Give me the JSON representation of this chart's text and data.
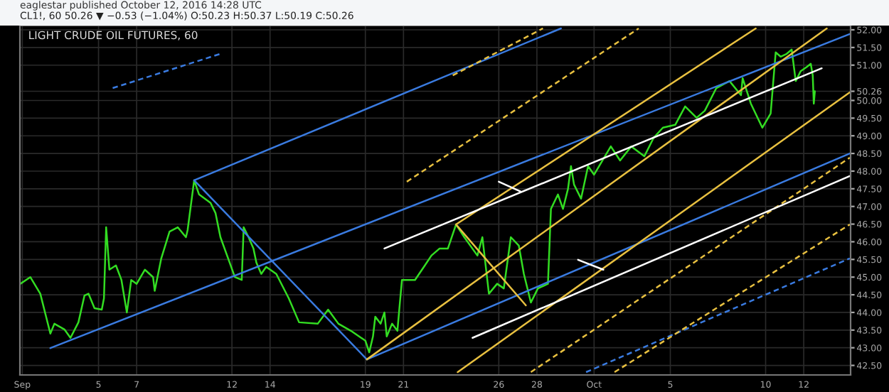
{
  "chart_data": {
    "type": "line",
    "title": "LIGHT CRUDE OIL FUTURES, 60",
    "subtitle": "CL1!, 60 50.26 ▼ −0.53 (−1.04%) O:50.23 H:50.37 L:50.19 C:50.26",
    "annotations": [
      "eaglestar published October 12, 2016 14:28 UTC"
    ],
    "xlim": [
      "2016-08-31T21:00",
      "2016-10-14T11:00"
    ],
    "ylim": [
      42.23,
      52.12
    ],
    "xticks": [
      {
        "value": "2016-09-01",
        "label": "Sep"
      },
      {
        "value": "2016-09-05",
        "label": "5"
      },
      {
        "value": "2016-09-07",
        "label": "7"
      },
      {
        "value": "2016-09-12",
        "label": "12"
      },
      {
        "value": "2016-09-14",
        "label": "14"
      },
      {
        "value": "2016-09-19",
        "label": "19"
      },
      {
        "value": "2016-09-21",
        "label": "21"
      },
      {
        "value": "2016-09-26",
        "label": "26"
      },
      {
        "value": "2016-09-28",
        "label": "28"
      },
      {
        "value": "2016-10-01",
        "label": "Oct"
      },
      {
        "value": "2016-10-05",
        "label": "5"
      },
      {
        "value": "2016-10-10",
        "label": "10"
      },
      {
        "value": "2016-10-12",
        "label": "12"
      }
    ],
    "yticks": [
      {
        "value": 42.5,
        "label": "42.50"
      },
      {
        "value": 43,
        "label": "43.00"
      },
      {
        "value": 43.5,
        "label": "43.50"
      },
      {
        "value": 44,
        "label": "44.00"
      },
      {
        "value": 44.5,
        "label": "44.50"
      },
      {
        "value": 45,
        "label": "45.00"
      },
      {
        "value": 45.5,
        "label": "45.50"
      },
      {
        "value": 46,
        "label": "46.00"
      },
      {
        "value": 46.5,
        "label": "46.50"
      },
      {
        "value": 47,
        "label": "47.00"
      },
      {
        "value": 47.5,
        "label": "47.50"
      },
      {
        "value": 48,
        "label": "48.00"
      },
      {
        "value": 48.5,
        "label": "48.50"
      },
      {
        "value": 49,
        "label": "49.00"
      },
      {
        "value": 49.5,
        "label": "49.50"
      },
      {
        "value": 50,
        "label": "50.00"
      },
      {
        "value": 50.26,
        "label": "50.26"
      },
      {
        "value": 51,
        "label": "51.00"
      },
      {
        "value": 51.5,
        "label": "51.50"
      },
      {
        "value": 52,
        "label": "52.00"
      }
    ],
    "grid": true,
    "legend": false,
    "marker": "none",
    "series": [
      {
        "color": "#33dd22",
        "line_style": "solid",
        "x": [
          "2016-08-31T21:30",
          "2016-09-01T10:05",
          "2016-09-01T22:40",
          "2016-09-02T11:20",
          "2016-09-02T16:25",
          "2016-09-03T05:00",
          "2016-09-03T12:40",
          "2016-09-03T22:40",
          "2016-09-04T06:20",
          "2016-09-04T11:20",
          "2016-09-04T18:55",
          "2016-09-05T04:05",
          "2016-09-05T06:50",
          "2016-09-05T09:35",
          "2016-09-05T13:40",
          "2016-09-05T21:55",
          "2016-09-06T04:50",
          "2016-09-06T11:40",
          "2016-09-06T17:10",
          "2016-09-07T00:00",
          "2016-09-07T10:20",
          "2016-09-07T20:40",
          "2016-09-07T22:45",
          "2016-09-08T07:00",
          "2016-09-08T17:25",
          "2016-09-09T03:45",
          "2016-09-09T14:05",
          "2016-09-09T16:10",
          "2016-09-10T00:25",
          "2016-09-10T06:35",
          "2016-09-10T21:05",
          "2016-09-11T03:20",
          "2016-09-11T09:30",
          "2016-09-11T19:50",
          "2016-09-12T03:40",
          "2016-09-12T12:20",
          "2016-09-12T14:45",
          "2016-09-12T20:55",
          "2016-09-13T03:05",
          "2016-09-13T06:45",
          "2016-09-13T12:55",
          "2016-09-13T19:05",
          "2016-09-14T07:50",
          "2016-09-14T23:30",
          "2016-09-15T12:30",
          "2016-09-16T12:00",
          "2016-09-17T01:05",
          "2016-09-17T14:05",
          "2016-09-18T05:45",
          "2016-09-19T00:00",
          "2016-09-19T04:50",
          "2016-09-19T09:35",
          "2016-09-19T12:30",
          "2016-09-19T19:10",
          "2016-09-20T00:00",
          "2016-09-20T02:55",
          "2016-09-20T09:35",
          "2016-09-20T16:20",
          "2016-09-20T19:10",
          "2016-09-20T22:05",
          "2016-09-21T14:30",
          "2016-09-22T02:55",
          "2016-09-22T11:10",
          "2016-09-22T21:30",
          "2016-09-23T07:55",
          "2016-09-23T18:10",
          "2016-09-24T04:35",
          "2016-09-24T21:05",
          "2016-09-25T03:20",
          "2016-09-25T11:35",
          "2016-09-25T21:55",
          "2016-09-26T06:20",
          "2016-09-26T15:10",
          "2016-09-27T01:15",
          "2016-09-27T07:35",
          "2016-09-27T16:25",
          "2016-09-28T01:15",
          "2016-09-28T13:55",
          "2016-09-28T17:40",
          "2016-09-29T02:30",
          "2016-09-29T08:50",
          "2016-09-29T15:10",
          "2016-09-29T18:55",
          "2016-09-29T22:45",
          "2016-09-30T07:35",
          "2016-09-30T16:25",
          "2016-10-01T00:00",
          "2016-10-01T21:05",
          "2016-10-02T08:45",
          "2016-10-02T22:50",
          "2016-10-03T15:15",
          "2016-10-04T02:55",
          "2016-10-04T14:40",
          "2016-10-05T06:10",
          "2016-10-05T18:40",
          "2016-10-06T09:05",
          "2016-10-06T19:25",
          "2016-10-07T09:55",
          "2016-10-08T02:30",
          "2016-10-08T17:00",
          "2016-10-08T19:05",
          "2016-10-09T05:25",
          "2016-10-09T19:50",
          "2016-10-10T06:20",
          "2016-10-10T12:40",
          "2016-10-10T18:55",
          "2016-10-11T02:30",
          "2016-10-11T08:50",
          "2016-10-11T13:55",
          "2016-10-11T20:10",
          "2016-10-12T03:50",
          "2016-10-12T08:50",
          "2016-10-12T11:20",
          "2016-10-12T12:40",
          "2016-10-12T14:00"
        ],
        "values": [
          44.81,
          45.0,
          44.53,
          43.4,
          43.68,
          43.52,
          43.28,
          43.72,
          44.48,
          44.53,
          44.12,
          44.08,
          44.4,
          46.41,
          45.21,
          45.33,
          44.92,
          44.0,
          44.92,
          44.81,
          45.21,
          45.0,
          44.61,
          45.53,
          46.29,
          46.41,
          46.13,
          46.33,
          47.74,
          47.34,
          47.1,
          46.81,
          46.13,
          45.49,
          45.0,
          44.92,
          46.41,
          46.13,
          45.81,
          45.41,
          45.09,
          45.29,
          45.09,
          44.4,
          43.72,
          43.68,
          44.08,
          43.68,
          43.48,
          43.2,
          42.87,
          43.32,
          43.88,
          43.68,
          44.0,
          43.32,
          43.68,
          43.48,
          44.2,
          44.92,
          44.92,
          45.33,
          45.61,
          45.81,
          45.81,
          46.49,
          46.13,
          45.61,
          46.13,
          44.53,
          44.81,
          44.68,
          46.13,
          45.89,
          45.09,
          44.28,
          44.68,
          44.81,
          46.93,
          47.34,
          46.93,
          47.5,
          48.14,
          47.62,
          47.22,
          48.14,
          47.9,
          48.7,
          48.3,
          48.7,
          48.42,
          48.94,
          49.23,
          49.31,
          49.83,
          49.51,
          49.71,
          50.35,
          50.55,
          50.15,
          50.63,
          49.91,
          49.23,
          49.63,
          51.36,
          51.24,
          51.32,
          51.44,
          50.55,
          50.83,
          50.95,
          51.04,
          50.71,
          49.91,
          50.26
        ]
      },
      {
        "color": "#3a7be0",
        "line_style": "solid",
        "x": [
          "2016-09-02T11:20",
          "2016-10-14T10:00"
        ],
        "values": [
          42.99,
          51.88
        ]
      },
      {
        "color": "#3a7be0",
        "line_style": "solid",
        "x": [
          "2016-09-10T00:25",
          "2016-09-29T06:20"
        ],
        "values": [
          47.74,
          52.04
        ]
      },
      {
        "color": "#3a7be0",
        "line_style": "solid",
        "x": [
          "2016-09-10T00:25",
          "2016-09-19T01:55"
        ],
        "values": [
          47.74,
          42.67
        ]
      },
      {
        "color": "#3a7be0",
        "line_style": "solid",
        "x": [
          "2016-09-19T01:55",
          "2016-10-14T10:00"
        ],
        "values": [
          42.67,
          48.5
        ]
      },
      {
        "color": "#3a7be0",
        "line_style": "dashed",
        "x": [
          "2016-09-05T17:50",
          "2016-09-11T09:30"
        ],
        "values": [
          50.35,
          51.32
        ]
      },
      {
        "color": "#3a7be0",
        "line_style": "dashed",
        "x": [
          "2016-09-30T13:55",
          "2016-10-14T10:00"
        ],
        "values": [
          42.31,
          45.53
        ]
      },
      {
        "color": "#e8c040",
        "line_style": "solid",
        "x": [
          "2016-09-23T18:10",
          "2016-10-09T11:35"
        ],
        "values": [
          46.49,
          52.04
        ]
      },
      {
        "color": "#e8c040",
        "line_style": "solid",
        "x": [
          "2016-09-19T01:55",
          "2016-10-13T05:00"
        ],
        "values": [
          42.67,
          52.04
        ]
      },
      {
        "color": "#e8c040",
        "line_style": "solid",
        "x": [
          "2016-09-23T20:15",
          "2016-10-14T10:00"
        ],
        "values": [
          42.31,
          50.23
        ]
      },
      {
        "color": "#e8c040",
        "line_style": "solid",
        "x": [
          "2016-09-23T18:10",
          "2016-09-27T10:05"
        ],
        "values": [
          46.49,
          44.2
        ]
      },
      {
        "color": "#e8c040",
        "line_style": "dashed",
        "x": [
          "2016-09-21T04:10",
          "2016-10-03T08:10"
        ],
        "values": [
          47.7,
          52.04
        ]
      },
      {
        "color": "#e8c040",
        "line_style": "dashed",
        "x": [
          "2016-09-23T14:05",
          "2016-09-28T07:35"
        ],
        "values": [
          50.71,
          52.04
        ]
      },
      {
        "color": "#e8c040",
        "line_style": "dashed",
        "x": [
          "2016-09-27T16:25",
          "2016-10-14T10:00"
        ],
        "values": [
          42.31,
          48.38
        ]
      },
      {
        "color": "#e8c040",
        "line_style": "dashed",
        "x": [
          "2016-10-02T01:45",
          "2016-10-14T10:00"
        ],
        "values": [
          42.31,
          46.49
        ]
      },
      {
        "color": "#ffffff",
        "line_style": "solid",
        "x": [
          "2016-09-20T00:00",
          "2016-10-12T22:40"
        ],
        "values": [
          45.81,
          50.91
        ]
      },
      {
        "color": "#ffffff",
        "line_style": "solid",
        "x": [
          "2016-09-24T14:55",
          "2016-10-14T10:00"
        ],
        "values": [
          43.28,
          47.86
        ]
      },
      {
        "color": "#ffffff",
        "line_style": "solid",
        "x": [
          "2016-09-26T00:00",
          "2016-09-27T03:50"
        ],
        "values": [
          47.7,
          47.42
        ]
      },
      {
        "color": "#ffffff",
        "line_style": "solid",
        "x": [
          "2016-09-30T03:50",
          "2016-10-01T11:40"
        ],
        "values": [
          45.49,
          45.21
        ]
      }
    ]
  }
}
